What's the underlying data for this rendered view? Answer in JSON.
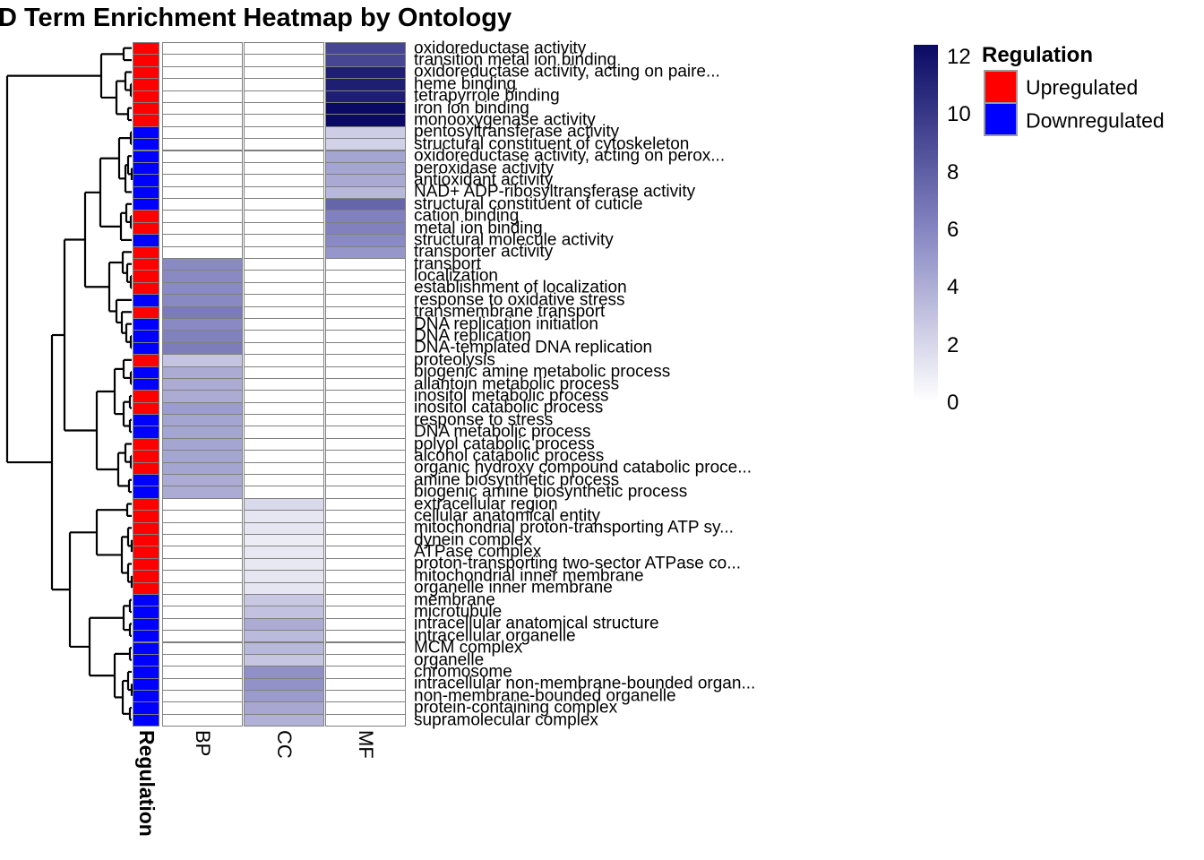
{
  "title": "D Term Enrichment Heatmap by Ontology",
  "annotation_label": "Regulation",
  "columns": [
    "BP",
    "CC",
    "MF"
  ],
  "colors": {
    "upregulated": "#ff0000",
    "downregulated": "#0000ff",
    "grid": "#808080",
    "scale_low": "#ffffff",
    "scale_mid": "#8181bf",
    "scale_high": "#0a0a64"
  },
  "legend": {
    "colorbar_ticks": [
      12,
      10,
      8,
      6,
      4,
      2,
      0
    ],
    "regulation_title": "Regulation",
    "up_label": "Upregulated",
    "down_label": "Downregulated"
  },
  "chart_data": {
    "type": "heatmap",
    "title": "D Term Enrichment Heatmap by Ontology",
    "columns": [
      "BP",
      "CC",
      "MF"
    ],
    "value_range": [
      0,
      12
    ],
    "legend_position": "right",
    "rows": [
      {
        "label": "oxidoreductase activity",
        "regulation": "up",
        "values": [
          0,
          0,
          9
        ]
      },
      {
        "label": "transition metal ion binding",
        "regulation": "up",
        "values": [
          0,
          0,
          9
        ]
      },
      {
        "label": "oxidoreductase activity, acting on paire...",
        "regulation": "up",
        "values": [
          0,
          0,
          11
        ]
      },
      {
        "label": "heme binding",
        "regulation": "up",
        "values": [
          0,
          0,
          11
        ]
      },
      {
        "label": "tetrapyrrole binding",
        "regulation": "up",
        "values": [
          0,
          0,
          11
        ]
      },
      {
        "label": "iron ion binding",
        "regulation": "up",
        "values": [
          0,
          0,
          12
        ]
      },
      {
        "label": "monooxygenase activity",
        "regulation": "up",
        "values": [
          0,
          0,
          12
        ]
      },
      {
        "label": "pentosyltransferase activity",
        "regulation": "down",
        "values": [
          0,
          0,
          2.4
        ]
      },
      {
        "label": "structural constituent of cytoskeleton",
        "regulation": "down",
        "values": [
          0,
          0,
          2.2
        ]
      },
      {
        "label": "oxidoreductase activity, acting on perox...",
        "regulation": "down",
        "values": [
          0,
          0,
          4.3
        ]
      },
      {
        "label": "peroxidase activity",
        "regulation": "down",
        "values": [
          0,
          0,
          4.3
        ]
      },
      {
        "label": "antioxidant activity",
        "regulation": "down",
        "values": [
          0,
          0,
          4.1
        ]
      },
      {
        "label": "NAD+ ADP-ribosyltransferase activity",
        "regulation": "down",
        "values": [
          0,
          0,
          3.4
        ]
      },
      {
        "label": "structural constituent of cuticle",
        "regulation": "down",
        "values": [
          0,
          0,
          7.4
        ]
      },
      {
        "label": "cation binding",
        "regulation": "up",
        "values": [
          0,
          0,
          6
        ]
      },
      {
        "label": "metal ion binding",
        "regulation": "up",
        "values": [
          0,
          0,
          6
        ]
      },
      {
        "label": "structural molecule activity",
        "regulation": "down",
        "values": [
          0,
          0,
          5.6
        ]
      },
      {
        "label": "transporter activity",
        "regulation": "up",
        "values": [
          0,
          0,
          5
        ]
      },
      {
        "label": "transport",
        "regulation": "up",
        "values": [
          5.6,
          0,
          0
        ]
      },
      {
        "label": "localization",
        "regulation": "up",
        "values": [
          5.6,
          0,
          0
        ]
      },
      {
        "label": "establishment of localization",
        "regulation": "up",
        "values": [
          5.6,
          0,
          0
        ]
      },
      {
        "label": "response to oxidative stress",
        "regulation": "down",
        "values": [
          5.6,
          0,
          0
        ]
      },
      {
        "label": "transmembrane transport",
        "regulation": "up",
        "values": [
          6.3,
          0,
          0
        ]
      },
      {
        "label": "DNA replication initiation",
        "regulation": "down",
        "values": [
          5.6,
          0,
          0
        ]
      },
      {
        "label": "DNA replication",
        "regulation": "down",
        "values": [
          6.0,
          0,
          0
        ]
      },
      {
        "label": "DNA-templated DNA replication",
        "regulation": "down",
        "values": [
          6.2,
          0,
          0
        ]
      },
      {
        "label": "proteolysis",
        "regulation": "up",
        "values": [
          2.8,
          0,
          0
        ]
      },
      {
        "label": "biogenic amine metabolic process",
        "regulation": "down",
        "values": [
          4.0,
          0,
          0
        ]
      },
      {
        "label": "allantoin metabolic process",
        "regulation": "down",
        "values": [
          4.0,
          0,
          0
        ]
      },
      {
        "label": "inositol metabolic process",
        "regulation": "up",
        "values": [
          4.0,
          0,
          0
        ]
      },
      {
        "label": "inositol catabolic process",
        "regulation": "up",
        "values": [
          4.7,
          0,
          0
        ]
      },
      {
        "label": "response to stress",
        "regulation": "down",
        "values": [
          4.3,
          0,
          0
        ]
      },
      {
        "label": "DNA metabolic process",
        "regulation": "down",
        "values": [
          4.3,
          0,
          0
        ]
      },
      {
        "label": "polyol catabolic process",
        "regulation": "up",
        "values": [
          4.3,
          0,
          0
        ]
      },
      {
        "label": "alcohol catabolic process",
        "regulation": "up",
        "values": [
          4.3,
          0,
          0
        ]
      },
      {
        "label": "organic hydroxy compound catabolic proce...",
        "regulation": "up",
        "values": [
          4.3,
          0,
          0
        ]
      },
      {
        "label": "amine biosynthetic process",
        "regulation": "down",
        "values": [
          4.0,
          0,
          0
        ]
      },
      {
        "label": "biogenic amine biosynthetic process",
        "regulation": "down",
        "values": [
          4.0,
          0,
          0
        ]
      },
      {
        "label": "extracellular region",
        "regulation": "up",
        "values": [
          0,
          1.8,
          0
        ]
      },
      {
        "label": "cellular anatomical entity",
        "regulation": "up",
        "values": [
          0,
          1.2,
          0
        ]
      },
      {
        "label": "mitochondrial proton-transporting ATP sy...",
        "regulation": "up",
        "values": [
          0,
          1.2,
          0
        ]
      },
      {
        "label": "dynein complex",
        "regulation": "up",
        "values": [
          0,
          0.9,
          0
        ]
      },
      {
        "label": "ATPase complex",
        "regulation": "up",
        "values": [
          0,
          1.1,
          0
        ]
      },
      {
        "label": "proton-transporting two-sector ATPase co...",
        "regulation": "up",
        "values": [
          0,
          1.1,
          0
        ]
      },
      {
        "label": "mitochondrial inner membrane",
        "regulation": "up",
        "values": [
          0,
          1.2,
          0
        ]
      },
      {
        "label": "organelle inner membrane",
        "regulation": "up",
        "values": [
          0,
          1.2,
          0
        ]
      },
      {
        "label": "membrane",
        "regulation": "down",
        "values": [
          0,
          2.6,
          0
        ]
      },
      {
        "label": "microtubule",
        "regulation": "down",
        "values": [
          0,
          2.9,
          0
        ]
      },
      {
        "label": "intracellular anatomical structure",
        "regulation": "down",
        "values": [
          0,
          4.0,
          0
        ]
      },
      {
        "label": "intracellular organelle",
        "regulation": "down",
        "values": [
          0,
          3.3,
          0
        ]
      },
      {
        "label": "MCM complex",
        "regulation": "down",
        "values": [
          0,
          3.4,
          0
        ]
      },
      {
        "label": "organelle",
        "regulation": "down",
        "values": [
          0,
          2.7,
          0
        ]
      },
      {
        "label": "chromosome",
        "regulation": "down",
        "values": [
          0,
          5.3,
          0
        ]
      },
      {
        "label": "intracellular non-membrane-bounded organ...",
        "regulation": "down",
        "values": [
          0,
          5.2,
          0
        ]
      },
      {
        "label": "non-membrane-bounded organelle",
        "regulation": "down",
        "values": [
          0,
          4.8,
          0
        ]
      },
      {
        "label": "protein-containing complex",
        "regulation": "down",
        "values": [
          0,
          4.2,
          0
        ]
      },
      {
        "label": "supramolecular complex",
        "regulation": "down",
        "values": [
          0,
          3.7,
          0
        ]
      }
    ],
    "dendrogram": [
      8,
      [
        113,
        [
          138,
          1,
          2
        ],
        [
          130,
          [
            140,
            3,
            [
              146,
              4,
              5
            ]
          ],
          [
            143,
            6,
            7
          ]
        ]
      ],
      [
        58,
        [
          72,
          [
            95,
            [
              112,
              [
                133,
                [
                  146,
                  8,
                  9
                ],
                [
                  140,
                  [
                    143,
                    10,
                    [
                      147,
                      11,
                      12
                    ]
                  ],
                  13
                ]
              ],
              [
                135,
                [
                  141,
                  14,
                  [
                    146,
                    15,
                    16
                  ]
                ],
                17
              ]
            ],
            [
              122,
              [
                137,
                18,
                [
                  142,
                  19,
                  [
                    146,
                    20,
                    21
                  ]
                ]
              ],
              [
                130,
                22,
                [
                  136,
                  23,
                  [
                    141,
                    24,
                    [
                      146,
                      25,
                      26
                    ]
                  ]
                ]
              ]
            ]
          ],
          [
            108,
            [
              128,
              [
                138,
                27,
                [
                  146,
                  28,
                  29
                ]
              ],
              [
                138,
                [
                  145,
                  30,
                  31
                ],
                [
                  145,
                  32,
                  33
                ]
              ]
            ],
            [
              132,
              [
                140,
                34,
                [
                  146,
                  35,
                  36
                ]
              ],
              [
                144,
                37,
                38
              ]
            ]
          ]
        ],
        [
          78,
          [
            108,
            [
              142,
              39,
              40
            ],
            [
              136,
              [
                143,
                41,
                [
                  147,
                  42,
                  43
                ]
              ],
              [
                143,
                44,
                [
                  147,
                  45,
                  46
                ]
              ]
            ]
          ],
          [
            100,
            [
              138,
              [
                145,
                47,
                48
              ],
              [
                145,
                49,
                50
              ]
            ],
            [
              128,
              [
                145,
                51,
                52
              ],
              [
                137,
                [
                  143,
                  53,
                  [
                    147,
                    54,
                    55
                  ]
                ],
                [
                  145,
                  56,
                  57
                ]
              ]
            ]
          ]
        ]
      ]
    ]
  }
}
